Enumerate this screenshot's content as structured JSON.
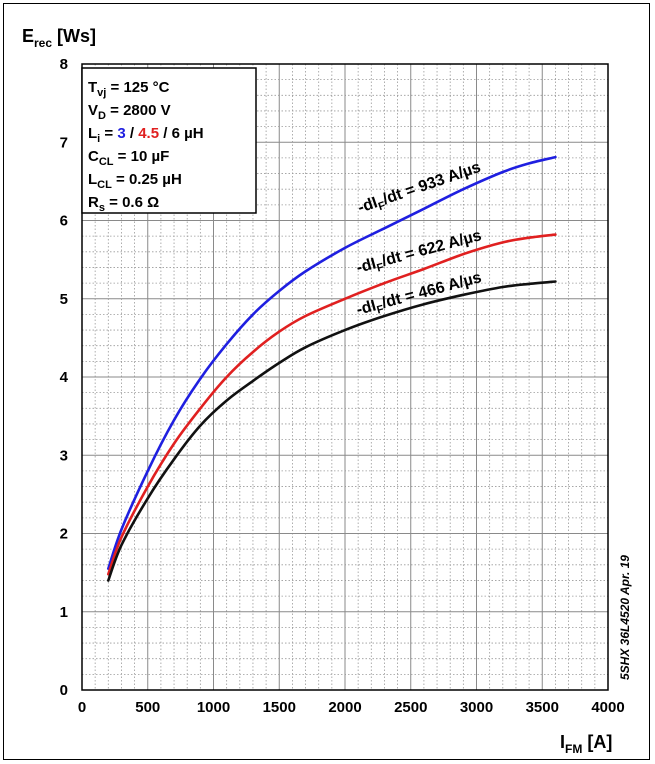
{
  "chart_data": {
    "type": "line",
    "y_axis_title": {
      "main": "E",
      "sub": "rec",
      "unit": " [Ws]"
    },
    "x_axis_title": {
      "main": "I",
      "sub": "FM",
      "unit": " [A]"
    },
    "xlim": [
      0,
      4000
    ],
    "ylim": [
      0,
      8
    ],
    "x_ticks": [
      "0",
      "500",
      "1000",
      "1500",
      "2000",
      "2500",
      "3000",
      "3500",
      "4000"
    ],
    "y_ticks": [
      "0",
      "1",
      "2",
      "3",
      "4",
      "5",
      "6",
      "7",
      "8"
    ],
    "grid": true,
    "conditions": {
      "tvj": {
        "main": "T",
        "sub": "vj",
        "rest": " = 125 °C"
      },
      "vd": {
        "main": "V",
        "sub": "D",
        "rest": " = 2800 V"
      },
      "li": {
        "main": "L",
        "sub": "i",
        "eq": " = ",
        "v1": "3",
        "s1": " / ",
        "v2": "4.5",
        "s2": " / 6 µH"
      },
      "ccl": {
        "main": "C",
        "sub": "CL",
        "rest": " = 10 µF"
      },
      "lcl": {
        "main": "L",
        "sub": "CL",
        "rest": " = 0.25 µH"
      },
      "rs": {
        "main": "R",
        "sub": "s",
        "rest": " = 0.6 Ω"
      }
    },
    "series": [
      {
        "name": "-dI/dt = 933 A/µs",
        "label_parts": {
          "pre": "-dI",
          "sub": "F",
          "post": "/dt = 933 A/µs"
        },
        "color": "#1f1fe0",
        "x": [
          200,
          300,
          500,
          700,
          900,
          1100,
          1300,
          1500,
          1700,
          2000,
          2300,
          2600,
          2900,
          3200,
          3400,
          3600
        ],
        "y": [
          1.55,
          2.05,
          2.8,
          3.45,
          3.98,
          4.42,
          4.8,
          5.1,
          5.35,
          5.65,
          5.9,
          6.15,
          6.4,
          6.62,
          6.73,
          6.81
        ]
      },
      {
        "name": "-dI/dt = 622 A/µs",
        "label_parts": {
          "pre": "-dI",
          "sub": "F",
          "post": "/dt = 622 A/µs"
        },
        "color": "#e02020",
        "x": [
          200,
          300,
          500,
          700,
          900,
          1100,
          1300,
          1500,
          1700,
          2000,
          2300,
          2600,
          2900,
          3200,
          3400,
          3600
        ],
        "y": [
          1.48,
          1.95,
          2.6,
          3.15,
          3.6,
          4.0,
          4.32,
          4.58,
          4.78,
          5.0,
          5.2,
          5.38,
          5.57,
          5.72,
          5.78,
          5.82
        ]
      },
      {
        "name": "-dI/dt = 466 A/µs",
        "label_parts": {
          "pre": "-dI",
          "sub": "F",
          "post": "/dt = 466 A/µs"
        },
        "color": "#111111",
        "x": [
          200,
          300,
          500,
          700,
          900,
          1100,
          1300,
          1500,
          1700,
          2000,
          2300,
          2600,
          2900,
          3200,
          3400,
          3600
        ],
        "y": [
          1.4,
          1.85,
          2.45,
          2.95,
          3.38,
          3.7,
          3.95,
          4.18,
          4.38,
          4.6,
          4.78,
          4.93,
          5.05,
          5.15,
          5.19,
          5.22
        ]
      }
    ],
    "side_note": "5SHX 36L4520 Apr. 19"
  }
}
